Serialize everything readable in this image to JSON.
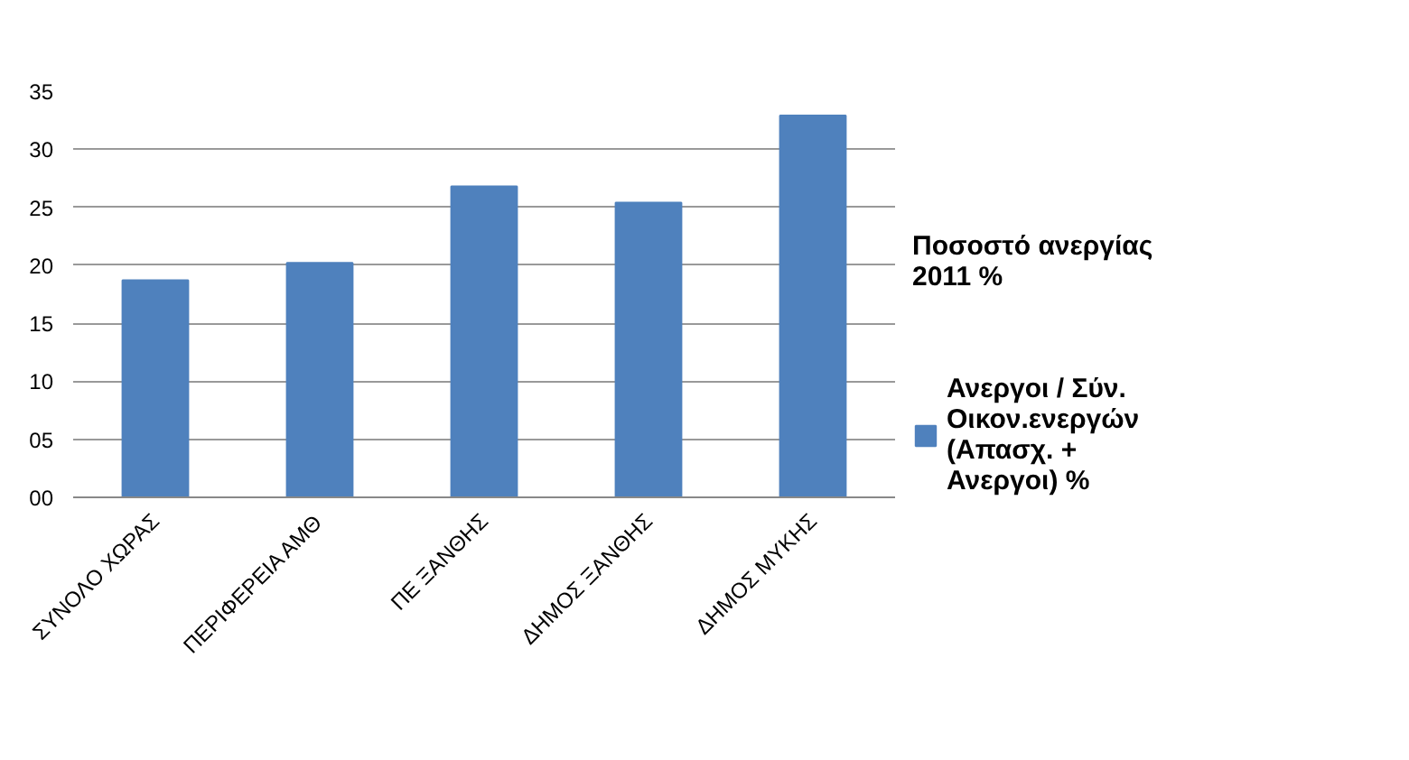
{
  "chart_data": {
    "type": "bar",
    "title": "Ποσοστό ανεργίας 2011 %",
    "categories": [
      "ΣΥΝΟΛΟ ΧΩΡΑΣ",
      "ΠΕΡΙΦΕΡΕΙΑ ΑΜΘ",
      "ΠΕ ΞΑΝΘΗΣ",
      "ΔΗΜΟΣ ΞΑΝΘΗΣ",
      "ΔΗΜΟΣ ΜΥΚΗΣ"
    ],
    "series": [
      {
        "name": "Ανεργοι / Σύν. Οικον.ενεργών (Απασχ. + Ανεργοι) %",
        "color": "#4f81bd",
        "values": [
          18.7,
          20.2,
          26.8,
          25.4,
          32.9
        ]
      }
    ],
    "ylim": [
      0,
      35
    ],
    "yticks": [
      {
        "value": 0,
        "label": "00"
      },
      {
        "value": 5,
        "label": "05"
      },
      10,
      15,
      20,
      25,
      30,
      35
    ],
    "grid": "y",
    "legend": "right"
  }
}
